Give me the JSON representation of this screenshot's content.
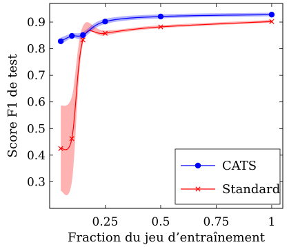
{
  "chart_data": {
    "type": "line",
    "xlabel": "Fraction du jeu d’entraînement",
    "ylabel": "Score F1 de test",
    "xlim": [
      0.0,
      1.05
    ],
    "ylim": [
      0.2,
      0.97
    ],
    "xticks": [
      0.25,
      0.5,
      0.75,
      1
    ],
    "xtick_labels": [
      "0.25",
      "0.5",
      "0.75",
      "1"
    ],
    "yticks": [
      0.3,
      0.4,
      0.5,
      0.6,
      0.7,
      0.8,
      0.9
    ],
    "ytick_labels": [
      "0.3",
      "0.4",
      "0.5",
      "0.6",
      "0.7",
      "0.8",
      "0.9"
    ],
    "grid": false,
    "legend_position": "bottom-right",
    "series": [
      {
        "name": "CATS",
        "color": "#0000ff",
        "marker": "circle",
        "x": [
          0.05,
          0.1,
          0.15,
          0.25,
          0.5,
          1.0
        ],
        "y": [
          0.828,
          0.848,
          0.851,
          0.902,
          0.921,
          0.928
        ],
        "band_lower": [
          0.815,
          0.84,
          0.84,
          0.893,
          0.914,
          0.922
        ],
        "band_upper": [
          0.842,
          0.857,
          0.863,
          0.912,
          0.929,
          0.935
        ]
      },
      {
        "name": "Standard",
        "color": "#ff0000",
        "marker": "x",
        "x": [
          0.05,
          0.1,
          0.15,
          0.25,
          0.5,
          1.0
        ],
        "y": [
          0.425,
          0.462,
          0.833,
          0.858,
          0.882,
          0.902
        ],
        "band_lower": [
          0.265,
          0.3,
          0.82,
          0.85,
          0.877,
          0.898
        ],
        "band_upper": [
          0.585,
          0.62,
          0.885,
          0.868,
          0.888,
          0.908
        ]
      }
    ]
  }
}
